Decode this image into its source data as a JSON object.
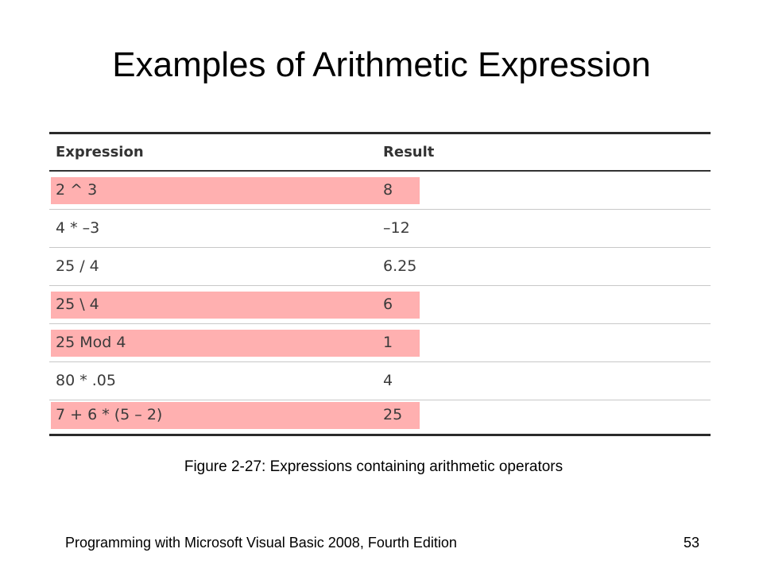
{
  "slide": {
    "title": "Examples of Arithmetic Expression",
    "caption": "Figure 2-27: Expressions containing arithmetic operators",
    "footer_text": "Programming with Microsoft Visual Basic 2008, Fourth Edition",
    "page_number": "53"
  },
  "table": {
    "headers": [
      "Expression",
      "Result"
    ],
    "rows": [
      {
        "expression": "2 ^ 3",
        "result": "8",
        "highlighted": true
      },
      {
        "expression": "4 * –3",
        "result": "–12",
        "highlighted": false
      },
      {
        "expression": "25 / 4",
        "result": "6.25",
        "highlighted": false
      },
      {
        "expression": "25 \\ 4",
        "result": "6",
        "highlighted": true
      },
      {
        "expression": "25 Mod 4",
        "result": "1",
        "highlighted": true
      },
      {
        "expression": "80 * .05",
        "result": "4",
        "highlighted": false
      },
      {
        "expression": "7 + 6 * (5 – 2)",
        "result": "25",
        "highlighted": true
      }
    ]
  },
  "colors": {
    "highlight": "#ffb0b0",
    "text": "#3a3a3a",
    "rule": "#2b2b2b"
  }
}
